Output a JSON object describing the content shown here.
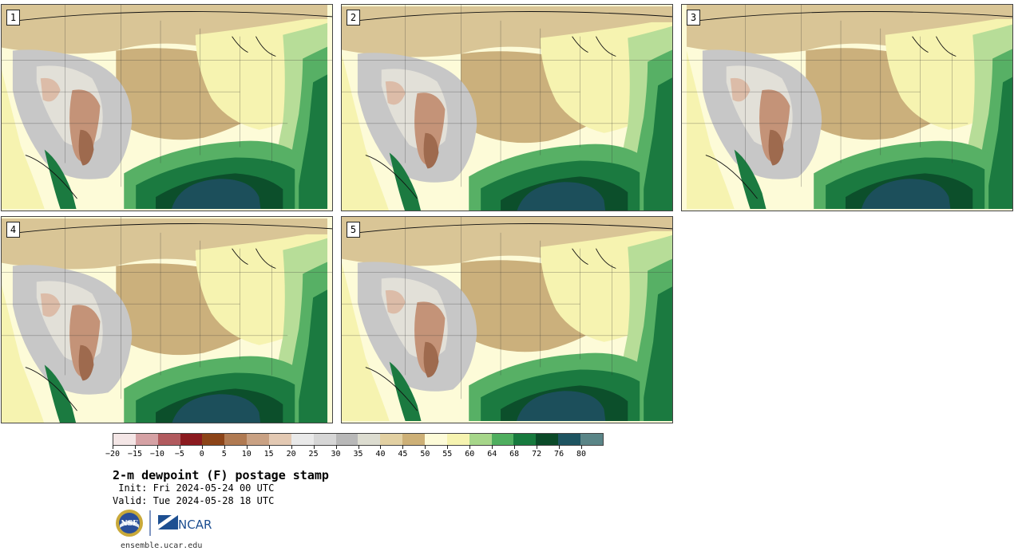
{
  "panels": [
    {
      "label": "1"
    },
    {
      "label": "2"
    },
    {
      "label": "3"
    },
    {
      "label": "4"
    },
    {
      "label": "5"
    }
  ],
  "colorbar": {
    "colors": [
      "#f4e6e6",
      "#d5a1a4",
      "#b15a5e",
      "#8b1a1f",
      "#8c4418",
      "#b07a52",
      "#c9a183",
      "#e3c9b3",
      "#e9e9e9",
      "#d6d6d6",
      "#b8b8b8",
      "#dcdcd0",
      "#e2d0a2",
      "#cdb077",
      "#fdfbd8",
      "#f6f3b0",
      "#a6d68a",
      "#4fae5f",
      "#177a3e",
      "#0b4a28",
      "#1e5461",
      "#5a8587"
    ],
    "tick_labels": [
      "−20",
      "−15",
      "−10",
      "−5",
      "0",
      "5",
      "10",
      "15",
      "20",
      "25",
      "30",
      "35",
      "40",
      "45",
      "50",
      "55",
      "60",
      "64",
      "68",
      "72",
      "76",
      "80"
    ]
  },
  "title": "2-m dewpoint (F) postage stamp",
  "init": " Init: Fri 2024-05-24 00 UTC",
  "valid": "Valid: Tue 2024-05-28 18 UTC",
  "logos": {
    "nsf": "NSF",
    "ncar": "NCAR"
  },
  "url": "ensemble.ucar.edu"
}
